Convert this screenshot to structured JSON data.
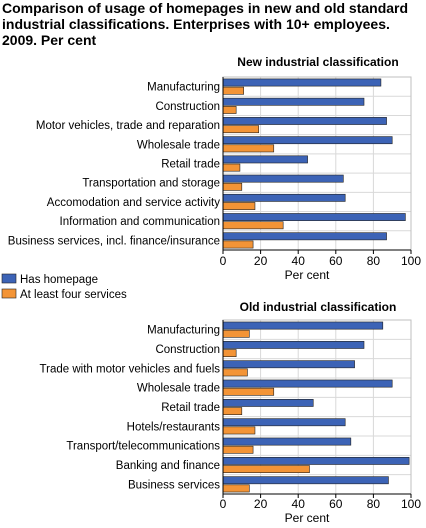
{
  "title": "Comparison of usage of homepages in new and old standard industrial classifications. Enterprises with 10+ employees. 2009. Per cent",
  "colors": {
    "series_a": "#3c63b6",
    "series_b": "#f39436",
    "grid": "#d9d9d9",
    "axis": "#000000"
  },
  "chart_data": [
    {
      "type": "bar",
      "orientation": "horizontal",
      "title": "New industrial classification",
      "xlabel": "Per cent",
      "xlim": [
        0,
        100
      ],
      "ticks": [
        0,
        20,
        40,
        60,
        80,
        100
      ],
      "grid": true,
      "categories": [
        "Manufacturing",
        "Construction",
        "Motor vehicles, trade and reparation",
        "Wholesale trade",
        "Retail trade",
        "Transportation and storage",
        "Accomodation and service activity",
        "Information and communication",
        "Business services, incl. finance/insurance"
      ],
      "series": [
        {
          "name": "Has homepage",
          "values": [
            84,
            75,
            87,
            90,
            45,
            64,
            65,
            97,
            87
          ]
        },
        {
          "name": "At least four services",
          "values": [
            11,
            7,
            19,
            27,
            9,
            10,
            17,
            32,
            16
          ]
        }
      ]
    },
    {
      "type": "bar",
      "orientation": "horizontal",
      "title": "Old industrial classification",
      "xlabel": "Per cent",
      "xlim": [
        0,
        100
      ],
      "ticks": [
        0,
        20,
        40,
        60,
        80,
        100
      ],
      "grid": true,
      "categories": [
        "Manufacturing",
        "Construction",
        "Trade with motor vehicles and fuels",
        "Wholesale trade",
        "Retail trade",
        "Hotels/restaurants",
        "Transport/telecommunications",
        "Banking and finance",
        "Business services"
      ],
      "series": [
        {
          "name": "Has homepage",
          "values": [
            85,
            75,
            70,
            90,
            48,
            65,
            68,
            99,
            88
          ]
        },
        {
          "name": "At least four services",
          "values": [
            14,
            7,
            13,
            27,
            10,
            17,
            16,
            46,
            14
          ]
        }
      ]
    }
  ],
  "legend": {
    "position": "left-middle",
    "items": [
      {
        "label": "Has homepage",
        "color": "#3c63b6"
      },
      {
        "label": "At least four services",
        "color": "#f39436"
      }
    ]
  }
}
